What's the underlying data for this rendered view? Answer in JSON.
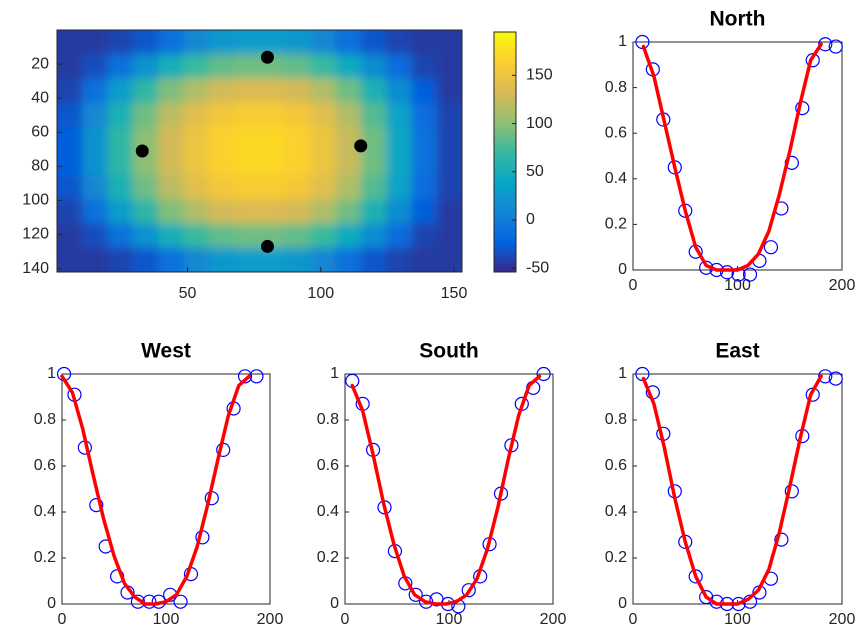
{
  "chart_data": [
    {
      "type": "heatmap",
      "xlim": [
        1,
        153
      ],
      "ylim": [
        0,
        142
      ],
      "reverse_y": true,
      "xticks": [
        50,
        100,
        150
      ],
      "yticks": [
        20,
        40,
        60,
        80,
        100,
        120,
        140
      ],
      "z": [
        [
          -45,
          -45,
          -40,
          -30,
          -10,
          10,
          25,
          30,
          30,
          25,
          10,
          -10,
          -30,
          -40,
          -45,
          -45
        ],
        [
          -45,
          -35,
          -10,
          20,
          50,
          70,
          85,
          90,
          90,
          85,
          70,
          45,
          15,
          -15,
          -40,
          -45
        ],
        [
          -40,
          -10,
          30,
          65,
          95,
          115,
          130,
          135,
          135,
          130,
          115,
          90,
          55,
          15,
          -25,
          -45
        ],
        [
          -30,
          10,
          55,
          90,
          120,
          140,
          155,
          160,
          160,
          155,
          140,
          115,
          80,
          35,
          -15,
          -40
        ],
        [
          -25,
          20,
          65,
          100,
          130,
          150,
          165,
          170,
          170,
          165,
          150,
          125,
          90,
          40,
          -10,
          -40
        ],
        [
          -25,
          20,
          65,
          100,
          130,
          150,
          165,
          170,
          170,
          165,
          150,
          125,
          90,
          40,
          -10,
          -40
        ],
        [
          -30,
          10,
          55,
          90,
          120,
          140,
          155,
          160,
          160,
          155,
          140,
          115,
          80,
          35,
          -15,
          -40
        ],
        [
          -40,
          -10,
          30,
          65,
          95,
          115,
          130,
          135,
          135,
          130,
          115,
          90,
          55,
          15,
          -25,
          -45
        ],
        [
          -45,
          -35,
          -10,
          20,
          50,
          70,
          85,
          90,
          90,
          85,
          70,
          45,
          15,
          -15,
          -40,
          -45
        ],
        [
          -45,
          -45,
          -40,
          -30,
          -10,
          10,
          25,
          30,
          30,
          25,
          10,
          -10,
          -30,
          -40,
          -45,
          -45
        ]
      ],
      "colormap": [
        "#352a87",
        "#0363e1",
        "#1485d4",
        "#06a7c6",
        "#38b99e",
        "#92bf73",
        "#d9ba56",
        "#fcce2e",
        "#f9fb0e"
      ],
      "clim": [
        -54,
        195
      ],
      "cticks": [
        -50,
        0,
        50,
        100,
        150
      ],
      "markers": {
        "x": [
          80,
          33,
          115,
          80
        ],
        "y": [
          16,
          71,
          68,
          127
        ],
        "color": "#000000"
      }
    },
    {
      "type": "line",
      "title": "North",
      "xlim": [
        0,
        200
      ],
      "ylim": [
        0,
        1
      ],
      "xticks": [
        0,
        100,
        200
      ],
      "yticks": [
        0,
        0.2,
        0.4,
        0.6,
        0.8,
        1
      ],
      "series": [
        {
          "type": "scatter",
          "color": "#0000ff",
          "x": [
            9,
            19,
            29,
            40,
            50,
            60,
            70,
            80,
            90,
            101,
            112,
            121,
            132,
            142,
            152,
            162,
            172,
            184,
            194
          ],
          "values": [
            1,
            0.88,
            0.66,
            0.45,
            0.26,
            0.08,
            0.01,
            0,
            -0.01,
            -0.02,
            -0.02,
            0.04,
            0.1,
            0.27,
            0.47,
            0.71,
            0.92,
            0.99,
            0.98
          ]
        },
        {
          "type": "line",
          "color": "#ff0000",
          "x": [
            10,
            20,
            30,
            40,
            50,
            60,
            70,
            80,
            90,
            100,
            110,
            120,
            130,
            140,
            150,
            160,
            170,
            180
          ],
          "values": [
            0.98,
            0.85,
            0.65,
            0.45,
            0.26,
            0.1,
            0.02,
            0,
            0,
            0,
            0.02,
            0.07,
            0.17,
            0.33,
            0.52,
            0.73,
            0.92,
            0.99
          ]
        }
      ]
    },
    {
      "type": "line",
      "title": "West",
      "xlim": [
        0,
        200
      ],
      "ylim": [
        0,
        1
      ],
      "xticks": [
        0,
        100,
        200
      ],
      "yticks": [
        0,
        0.2,
        0.4,
        0.6,
        0.8,
        1
      ],
      "series": [
        {
          "type": "scatter",
          "color": "#0000ff",
          "x": [
            2,
            12,
            22,
            33,
            42,
            53,
            63,
            73,
            84,
            93,
            104,
            114,
            124,
            135,
            144,
            155,
            165,
            176,
            187
          ],
          "values": [
            1,
            0.91,
            0.68,
            0.43,
            0.25,
            0.12,
            0.05,
            0.01,
            0.01,
            0.01,
            0.04,
            0.01,
            0.13,
            0.29,
            0.46,
            0.67,
            0.85,
            0.99,
            0.99
          ]
        },
        {
          "type": "line",
          "color": "#ff0000",
          "x": [
            0,
            10,
            20,
            30,
            40,
            50,
            60,
            70,
            80,
            90,
            100,
            110,
            120,
            130,
            140,
            150,
            160,
            170,
            180
          ],
          "values": [
            0.99,
            0.92,
            0.76,
            0.56,
            0.37,
            0.21,
            0.09,
            0.03,
            0,
            0,
            0.01,
            0.04,
            0.12,
            0.25,
            0.43,
            0.63,
            0.82,
            0.95,
            0.99
          ]
        }
      ]
    },
    {
      "type": "line",
      "title": "South",
      "xlim": [
        0,
        200
      ],
      "ylim": [
        0,
        1
      ],
      "xticks": [
        0,
        100,
        200
      ],
      "yticks": [
        0,
        0.2,
        0.4,
        0.6,
        0.8,
        1
      ],
      "series": [
        {
          "type": "scatter",
          "color": "#0000ff",
          "x": [
            7,
            17,
            27,
            38,
            48,
            58,
            68,
            78,
            88,
            99,
            109,
            119,
            130,
            139,
            150,
            160,
            170,
            181,
            191
          ],
          "values": [
            0.97,
            0.87,
            0.67,
            0.42,
            0.23,
            0.09,
            0.04,
            0.01,
            0.02,
            0,
            -0.01,
            0.06,
            0.12,
            0.26,
            0.48,
            0.69,
            0.87,
            0.94,
            1
          ]
        },
        {
          "type": "line",
          "color": "#ff0000",
          "x": [
            7,
            17,
            27,
            37,
            47,
            57,
            67,
            77,
            87,
            97,
            107,
            117,
            127,
            137,
            147,
            157,
            167,
            177,
            187
          ],
          "values": [
            0.95,
            0.84,
            0.65,
            0.44,
            0.26,
            0.12,
            0.04,
            0.01,
            0,
            0,
            0.01,
            0.04,
            0.11,
            0.24,
            0.42,
            0.63,
            0.82,
            0.95,
            0.99
          ]
        }
      ]
    },
    {
      "type": "line",
      "title": "East",
      "xlim": [
        0,
        200
      ],
      "ylim": [
        0,
        1
      ],
      "xticks": [
        0,
        100,
        200
      ],
      "yticks": [
        0,
        0.2,
        0.4,
        0.6,
        0.8,
        1
      ],
      "series": [
        {
          "type": "scatter",
          "color": "#0000ff",
          "x": [
            9,
            19,
            29,
            40,
            50,
            60,
            70,
            80,
            90,
            101,
            112,
            121,
            132,
            142,
            152,
            162,
            172,
            184,
            194
          ],
          "values": [
            1,
            0.92,
            0.74,
            0.49,
            0.27,
            0.12,
            0.03,
            0.01,
            0,
            0,
            0.01,
            0.05,
            0.11,
            0.28,
            0.49,
            0.73,
            0.91,
            0.99,
            0.98
          ]
        },
        {
          "type": "line",
          "color": "#ff0000",
          "x": [
            10,
            20,
            30,
            40,
            50,
            60,
            70,
            80,
            90,
            100,
            110,
            120,
            130,
            140,
            150,
            160,
            170,
            180
          ],
          "values": [
            0.98,
            0.87,
            0.68,
            0.46,
            0.27,
            0.12,
            0.03,
            0,
            0,
            0,
            0.02,
            0.06,
            0.15,
            0.31,
            0.51,
            0.72,
            0.91,
            0.99
          ]
        }
      ]
    }
  ]
}
